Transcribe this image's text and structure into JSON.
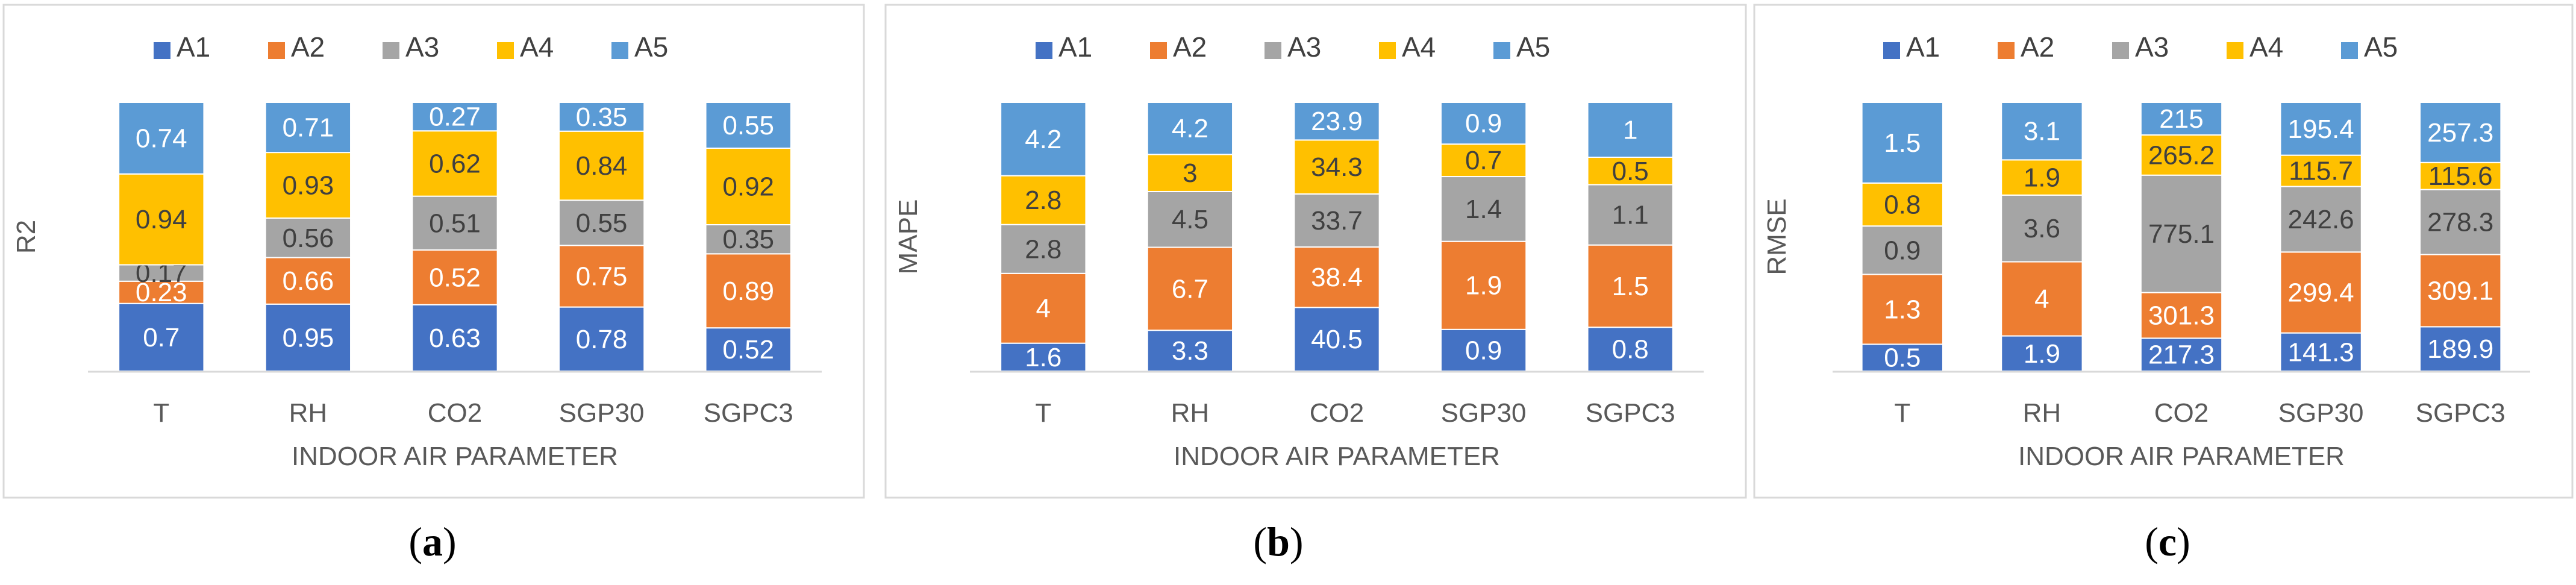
{
  "colors": {
    "A1": "#4472C4",
    "A2": "#ED7D31",
    "A3": "#A5A5A5",
    "A4": "#FFC000",
    "A5": "#5B9BD5"
  },
  "chart_data": [
    {
      "type": "bar",
      "stacked": true,
      "caption_prefix": "(",
      "caption_letter": "a",
      "caption_suffix": ")",
      "categories": [
        "T",
        "RH",
        "CO2",
        "SGP30",
        "SGPC3"
      ],
      "xlabel": "INDOOR AIR PARAMETER",
      "ylabel": "R2",
      "legend_position": "top",
      "series": [
        {
          "name": "A1",
          "values": [
            0.7,
            0.95,
            0.63,
            0.78,
            0.52
          ]
        },
        {
          "name": "A2",
          "values": [
            0.23,
            0.66,
            0.52,
            0.75,
            0.89
          ]
        },
        {
          "name": "A3",
          "values": [
            0.17,
            0.56,
            0.51,
            0.55,
            0.35
          ]
        },
        {
          "name": "A4",
          "values": [
            0.94,
            0.93,
            0.62,
            0.84,
            0.92
          ]
        },
        {
          "name": "A5",
          "values": [
            0.74,
            0.71,
            0.27,
            0.35,
            0.55
          ]
        }
      ]
    },
    {
      "type": "bar",
      "stacked": true,
      "caption_prefix": "(",
      "caption_letter": "b",
      "caption_suffix": ")",
      "categories": [
        "T",
        "RH",
        "CO2",
        "SGP30",
        "SGPC3"
      ],
      "xlabel": "INDOOR AIR PARAMETER",
      "ylabel": "MAPE",
      "legend_position": "top",
      "series": [
        {
          "name": "A1",
          "values": [
            1.6,
            3.3,
            40.5,
            0.9,
            0.8
          ]
        },
        {
          "name": "A2",
          "values": [
            4,
            6.7,
            38.4,
            1.9,
            1.5
          ]
        },
        {
          "name": "A3",
          "values": [
            2.8,
            4.5,
            33.7,
            1.4,
            1.1
          ]
        },
        {
          "name": "A4",
          "values": [
            2.8,
            3,
            34.3,
            0.7,
            0.5
          ]
        },
        {
          "name": "A5",
          "values": [
            4.2,
            4.2,
            23.9,
            0.9,
            1
          ]
        }
      ]
    },
    {
      "type": "bar",
      "stacked": true,
      "caption_prefix": "(",
      "caption_letter": "c",
      "caption_suffix": ")",
      "categories": [
        "T",
        "RH",
        "CO2",
        "SGP30",
        "SGPC3"
      ],
      "xlabel": "INDOOR AIR PARAMETER",
      "ylabel": "RMSE",
      "legend_position": "top",
      "series": [
        {
          "name": "A1",
          "values": [
            0.5,
            1.9,
            217.3,
            141.3,
            189.9
          ]
        },
        {
          "name": "A2",
          "values": [
            1.3,
            4,
            301.3,
            299.4,
            309.1
          ]
        },
        {
          "name": "A3",
          "values": [
            0.9,
            3.6,
            775.1,
            242.6,
            278.3
          ]
        },
        {
          "name": "A4",
          "values": [
            0.8,
            1.9,
            265.2,
            115.7,
            115.6
          ]
        },
        {
          "name": "A5",
          "values": [
            1.5,
            3.1,
            215,
            195.4,
            257.3
          ]
        }
      ]
    }
  ]
}
